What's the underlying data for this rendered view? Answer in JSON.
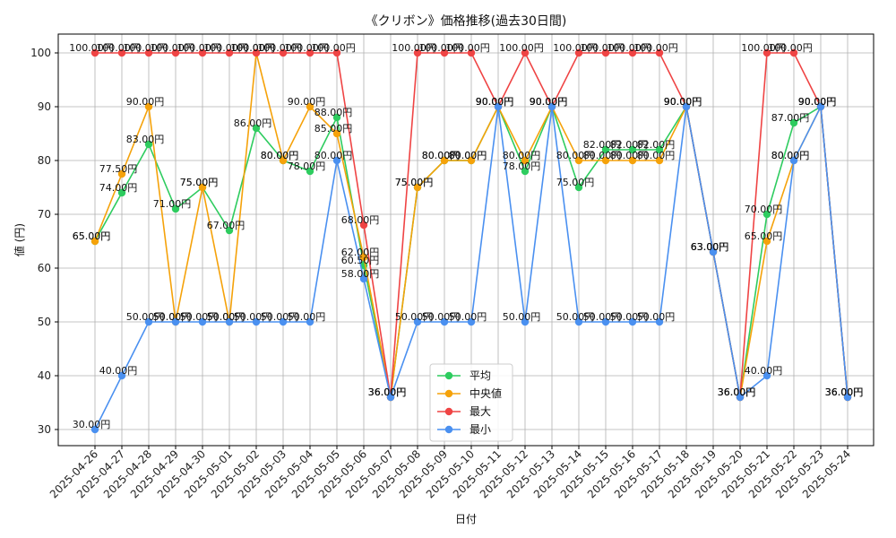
{
  "chart_data": {
    "type": "line",
    "title": "《クリボン》価格推移(過去30日間)",
    "xlabel": "日付",
    "ylabel": "値 (円)",
    "ylim": [
      27,
      103.5
    ],
    "yticks": [
      30,
      40,
      50,
      60,
      70,
      80,
      90,
      100
    ],
    "grid": true,
    "legend_position": "bottom-center",
    "label_suffix": "円",
    "categories": [
      "2025-04-26",
      "2025-04-27",
      "2025-04-28",
      "2025-04-29",
      "2025-04-30",
      "2025-05-01",
      "2025-05-02",
      "2025-05-03",
      "2025-05-04",
      "2025-05-05",
      "2025-05-06",
      "2025-05-07",
      "2025-05-08",
      "2025-05-09",
      "2025-05-10",
      "2025-05-11",
      "2025-05-12",
      "2025-05-13",
      "2025-05-14",
      "2025-05-15",
      "2025-05-16",
      "2025-05-17",
      "2025-05-18",
      "2025-05-19",
      "2025-05-20",
      "2025-05-21",
      "2025-05-22",
      "2025-05-23",
      "2025-05-24"
    ],
    "series": [
      {
        "name": "平均",
        "color": "#2ecc5f",
        "values": [
          65,
          74,
          83,
          71,
          75,
          67,
          86,
          80,
          78,
          88,
          60.5,
          36,
          75,
          80,
          80,
          90,
          78,
          90,
          75,
          82,
          82,
          82,
          90,
          63,
          36,
          70,
          87,
          90,
          36
        ]
      },
      {
        "name": "中央値",
        "color": "#f5a20a",
        "values": [
          65,
          77.5,
          90,
          50,
          75,
          50,
          100,
          80,
          90,
          85,
          62,
          36,
          75,
          80,
          80,
          90,
          80,
          90,
          80,
          80,
          80,
          80,
          90,
          63,
          36,
          65,
          80,
          90,
          36
        ]
      },
      {
        "name": "最大",
        "color": "#ef4444",
        "values": [
          100,
          100,
          100,
          100,
          100,
          100,
          100,
          100,
          100,
          100,
          68,
          36,
          100,
          100,
          100,
          90,
          100,
          90,
          100,
          100,
          100,
          100,
          90,
          63,
          36,
          100,
          100,
          90,
          36
        ]
      },
      {
        "name": "最小",
        "color": "#4a90f0",
        "values": [
          30,
          40,
          50,
          50,
          50,
          50,
          50,
          50,
          50,
          80,
          58,
          36,
          50,
          50,
          50,
          90,
          50,
          90,
          50,
          50,
          50,
          50,
          90,
          63,
          36,
          40,
          80,
          90,
          36
        ]
      }
    ]
  }
}
